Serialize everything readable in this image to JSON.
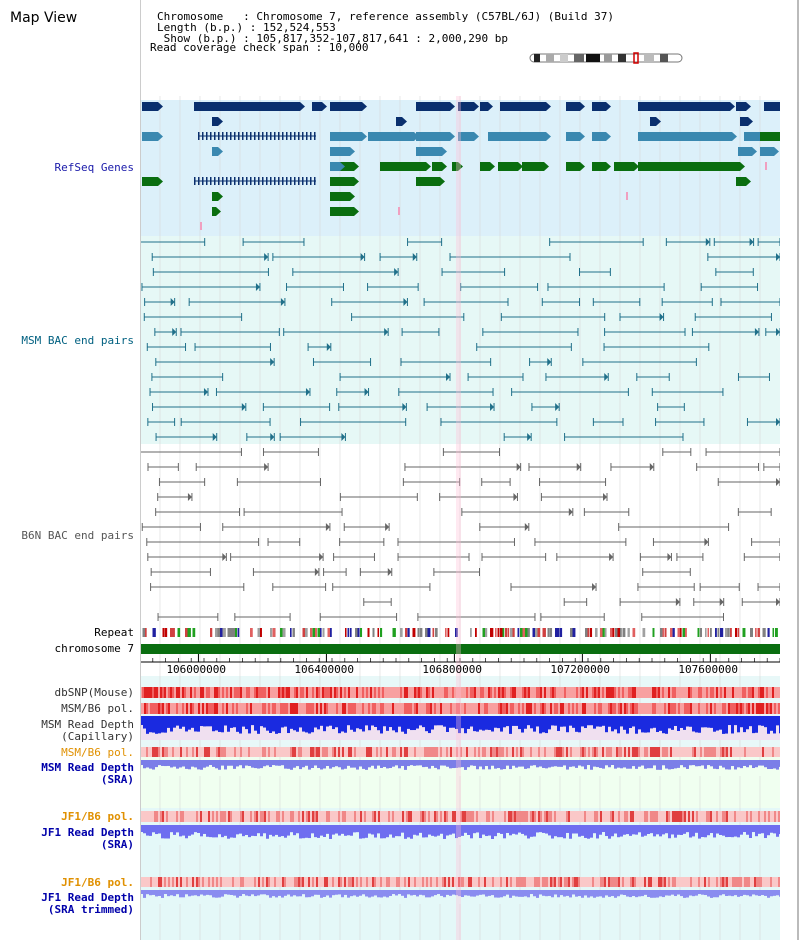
{
  "view": {
    "title": "Map View"
  },
  "info": {
    "line1": "Chromosome   : Chromosome 7, reference assembly (C57BL/6J) (Build 37)",
    "line2": "Length (b.p.) : 152,524,553",
    "line3": " Show (b.p.) : 105,817,352-107,817,641 : 2,000,290 bp",
    "line4": "Read coverage check span : 10,000"
  },
  "tracks": {
    "refseq": "RefSeq Genes",
    "msm_bac": "MSM BAC end pairs",
    "b6n_bac": "B6N BAC end pairs",
    "repeat": "Repeat",
    "chromosome": "chromosome 7",
    "dbsnp": "dbSNP(Mouse)",
    "msm_b6_pol_1": "MSM/B6 pol.",
    "msm_read_depth_1": "MSM Read Depth",
    "capillary": "(Capillary)",
    "msm_b6_pol_2": "MSM/B6 pol.",
    "msm_read_depth_2": "MSM Read Depth",
    "sra_1": "(SRA)",
    "jf1_b6_pol_1": "JF1/B6 pol.",
    "jf1_read_depth_1": "JF1 Read Depth",
    "sra_2": "(SRA)",
    "jf1_b6_pol_2": "JF1/B6 pol.",
    "jf1_read_depth_2": "JF1 Read Depth",
    "sra_trimmed": "(SRA trimmed)"
  },
  "axis": {
    "ticks": [
      "106000000",
      "106400000",
      "106800000",
      "107200000",
      "107600000"
    ],
    "tick_positions_bp": [
      106000000,
      106400000,
      106800000,
      107200000,
      107600000
    ],
    "range_bp": [
      105817352,
      107817641
    ]
  },
  "colors": {
    "refseq_label": "#1a1aaa",
    "msm_label": "#006080",
    "b6n_label": "#555555",
    "pol_orange": "#e09000",
    "depth_blue": "#0000aa",
    "gene_navy": "#0a2f6e",
    "gene_mid": "#3a88b0",
    "gene_green": "#0a6e10",
    "chromosome_green": "#0a6e10"
  },
  "icons": {
    "ideogram": "chromosome-ideogram"
  }
}
